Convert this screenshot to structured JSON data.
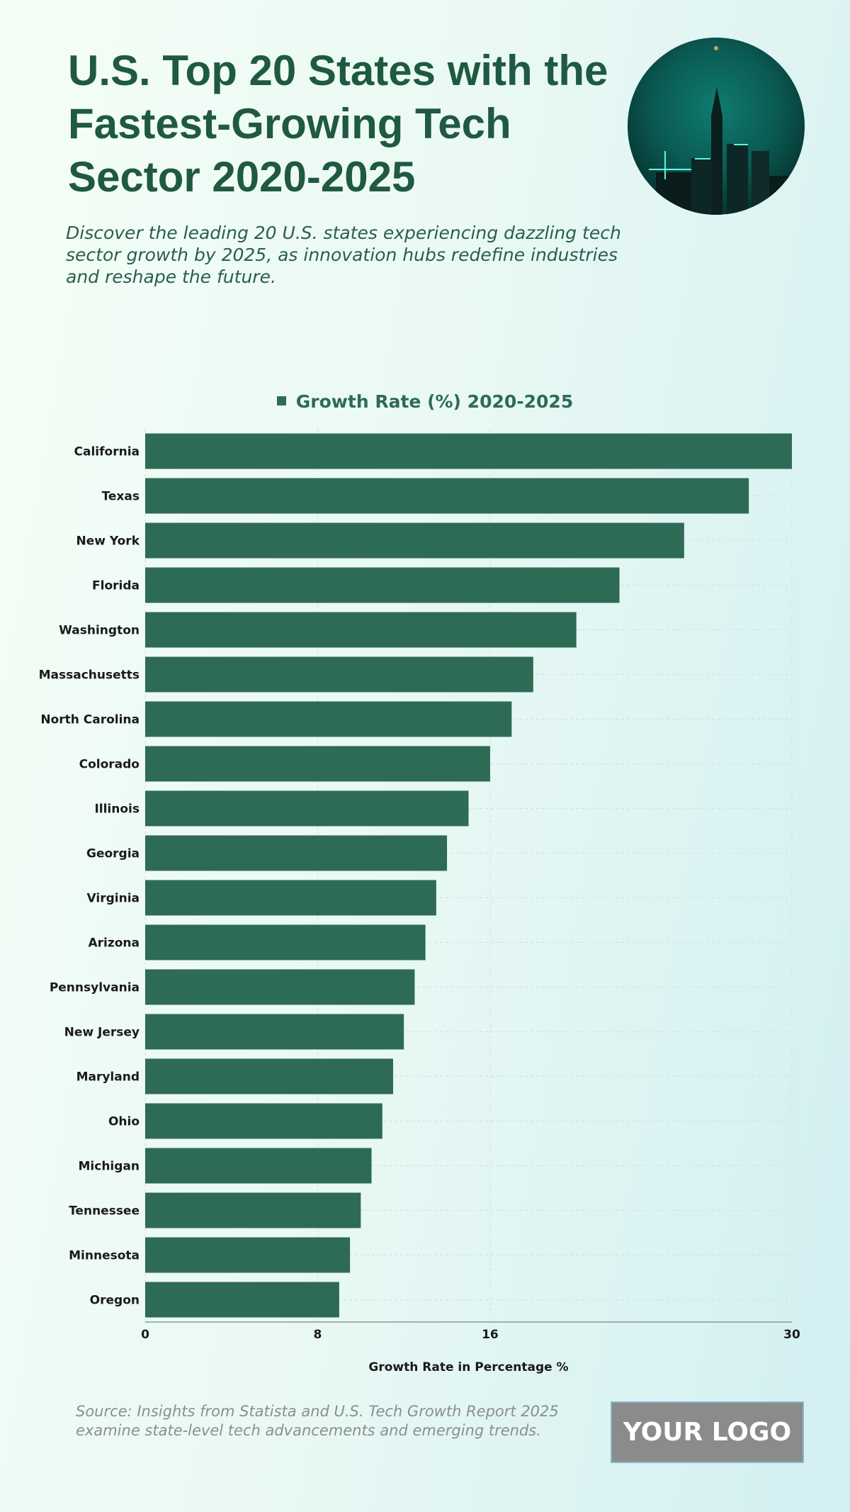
{
  "header": {
    "title": "U.S. Top 20 States with the Fastest-Growing Tech Sector 2020-2025",
    "subtitle": "Discover the leading 20 U.S. states experiencing dazzling tech sector growth by 2025, as innovation hubs redefine industries and reshape the future."
  },
  "footer": {
    "source": "Source: Insights from Statista and U.S. Tech Growth Report 2025 examine state-level tech advancements and emerging trends.",
    "logo": "YOUR LOGO"
  },
  "colors": {
    "bar": "#2e6b55",
    "title": "#1f5942"
  },
  "chart_data": {
    "type": "bar",
    "orientation": "horizontal",
    "legend": "Growth Rate (%) 2020-2025",
    "legend_position": "top-center",
    "xlabel": "Growth Rate in Percentage %",
    "ylabel": "",
    "xlim": [
      0,
      30
    ],
    "xticks": [
      0,
      8,
      16,
      30
    ],
    "grid": true,
    "categories": [
      "California",
      "Texas",
      "New York",
      "Florida",
      "Washington",
      "Massachusetts",
      "North Carolina",
      "Colorado",
      "Illinois",
      "Georgia",
      "Virginia",
      "Arizona",
      "Pennsylvania",
      "New Jersey",
      "Maryland",
      "Ohio",
      "Michigan",
      "Tennessee",
      "Minnesota",
      "Oregon"
    ],
    "series": [
      {
        "name": "Growth Rate (%) 2020-2025",
        "values": [
          30,
          28,
          25,
          22,
          20,
          18,
          17,
          16,
          15,
          14,
          13.5,
          13,
          12.5,
          12,
          11.5,
          11,
          10.5,
          10,
          9.5,
          9
        ]
      }
    ]
  }
}
